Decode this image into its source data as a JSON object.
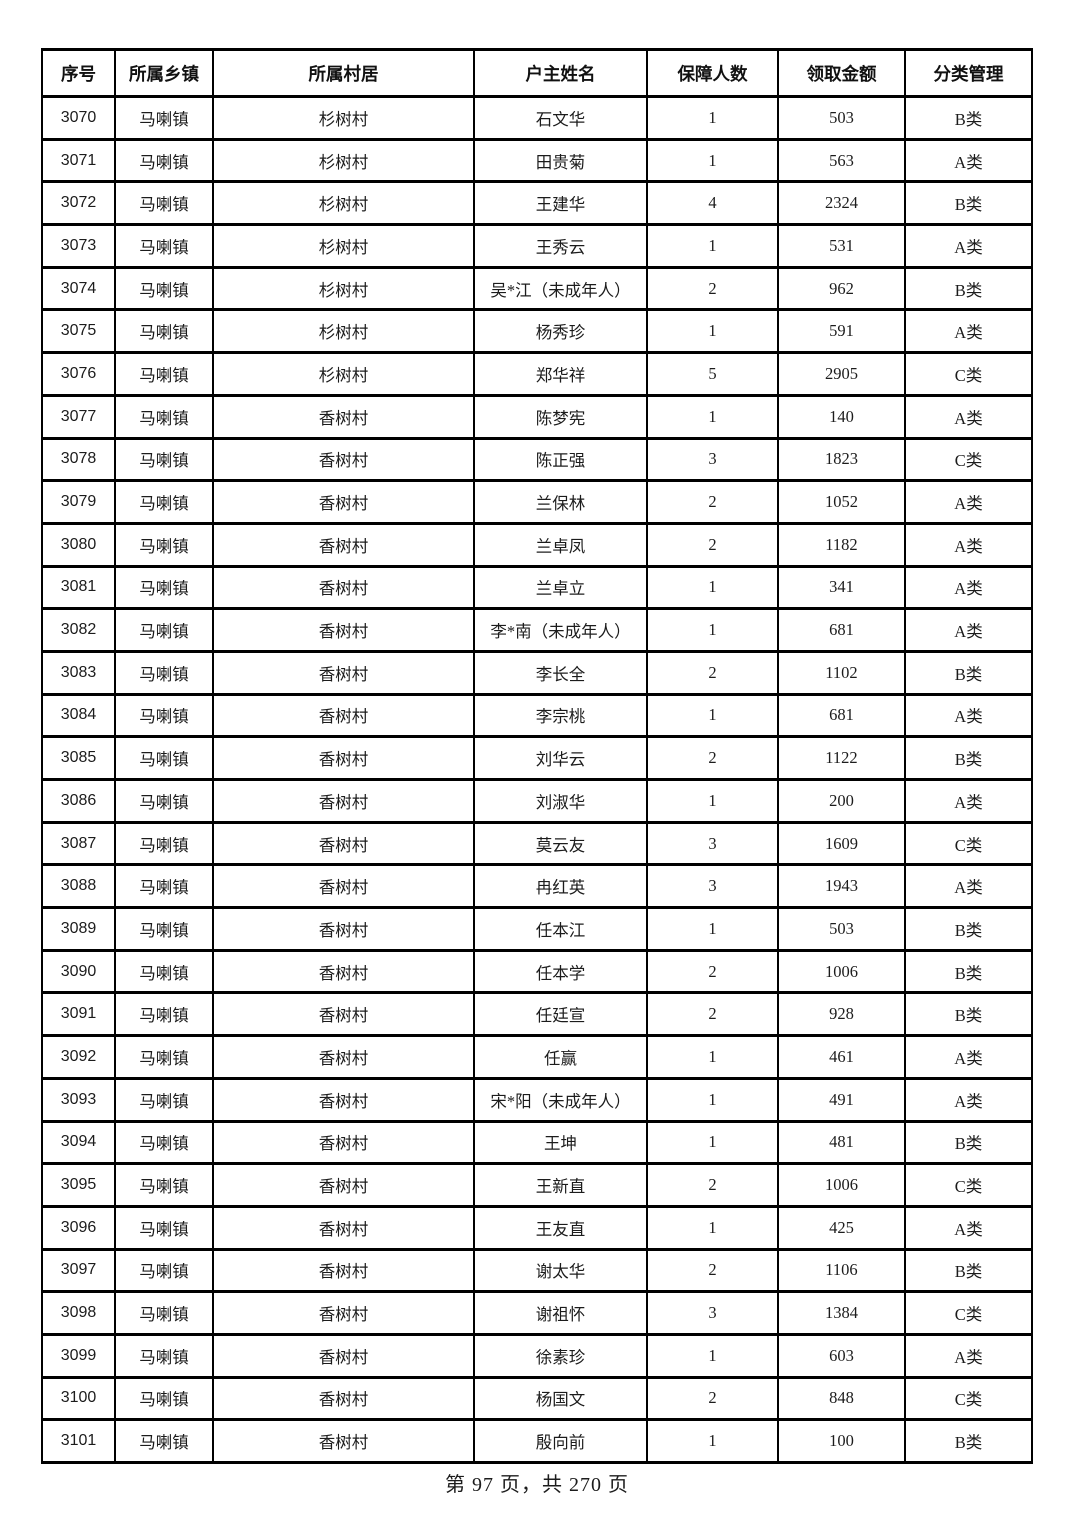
{
  "table": {
    "columns": [
      "序号",
      "所属乡镇",
      "所属村居",
      "户主姓名",
      "保障人数",
      "领取金额",
      "分类管理"
    ],
    "rows": [
      [
        "3070",
        "马喇镇",
        "杉树村",
        "石文华",
        "1",
        "503",
        "B类"
      ],
      [
        "3071",
        "马喇镇",
        "杉树村",
        "田贵菊",
        "1",
        "563",
        "A类"
      ],
      [
        "3072",
        "马喇镇",
        "杉树村",
        "王建华",
        "4",
        "2324",
        "B类"
      ],
      [
        "3073",
        "马喇镇",
        "杉树村",
        "王秀云",
        "1",
        "531",
        "A类"
      ],
      [
        "3074",
        "马喇镇",
        "杉树村",
        "吴*江（未成年人）",
        "2",
        "962",
        "B类"
      ],
      [
        "3075",
        "马喇镇",
        "杉树村",
        "杨秀珍",
        "1",
        "591",
        "A类"
      ],
      [
        "3076",
        "马喇镇",
        "杉树村",
        "郑华祥",
        "5",
        "2905",
        "C类"
      ],
      [
        "3077",
        "马喇镇",
        "香树村",
        "陈梦宪",
        "1",
        "140",
        "A类"
      ],
      [
        "3078",
        "马喇镇",
        "香树村",
        "陈正强",
        "3",
        "1823",
        "C类"
      ],
      [
        "3079",
        "马喇镇",
        "香树村",
        "兰保林",
        "2",
        "1052",
        "A类"
      ],
      [
        "3080",
        "马喇镇",
        "香树村",
        "兰卓凤",
        "2",
        "1182",
        "A类"
      ],
      [
        "3081",
        "马喇镇",
        "香树村",
        "兰卓立",
        "1",
        "341",
        "A类"
      ],
      [
        "3082",
        "马喇镇",
        "香树村",
        "李*南（未成年人）",
        "1",
        "681",
        "A类"
      ],
      [
        "3083",
        "马喇镇",
        "香树村",
        "李长全",
        "2",
        "1102",
        "B类"
      ],
      [
        "3084",
        "马喇镇",
        "香树村",
        "李宗桃",
        "1",
        "681",
        "A类"
      ],
      [
        "3085",
        "马喇镇",
        "香树村",
        "刘华云",
        "2",
        "1122",
        "B类"
      ],
      [
        "3086",
        "马喇镇",
        "香树村",
        "刘淑华",
        "1",
        "200",
        "A类"
      ],
      [
        "3087",
        "马喇镇",
        "香树村",
        "莫云友",
        "3",
        "1609",
        "C类"
      ],
      [
        "3088",
        "马喇镇",
        "香树村",
        "冉红英",
        "3",
        "1943",
        "A类"
      ],
      [
        "3089",
        "马喇镇",
        "香树村",
        "任本江",
        "1",
        "503",
        "B类"
      ],
      [
        "3090",
        "马喇镇",
        "香树村",
        "任本学",
        "2",
        "1006",
        "B类"
      ],
      [
        "3091",
        "马喇镇",
        "香树村",
        "任廷宣",
        "2",
        "928",
        "B类"
      ],
      [
        "3092",
        "马喇镇",
        "香树村",
        "任赢",
        "1",
        "461",
        "A类"
      ],
      [
        "3093",
        "马喇镇",
        "香树村",
        "宋*阳（未成年人）",
        "1",
        "491",
        "A类"
      ],
      [
        "3094",
        "马喇镇",
        "香树村",
        "王坤",
        "1",
        "481",
        "B类"
      ],
      [
        "3095",
        "马喇镇",
        "香树村",
        "王新直",
        "2",
        "1006",
        "C类"
      ],
      [
        "3096",
        "马喇镇",
        "香树村",
        "王友直",
        "1",
        "425",
        "A类"
      ],
      [
        "3097",
        "马喇镇",
        "香树村",
        "谢太华",
        "2",
        "1106",
        "B类"
      ],
      [
        "3098",
        "马喇镇",
        "香树村",
        "谢祖怀",
        "3",
        "1384",
        "C类"
      ],
      [
        "3099",
        "马喇镇",
        "香树村",
        "徐素珍",
        "1",
        "603",
        "A类"
      ],
      [
        "3100",
        "马喇镇",
        "香树村",
        "杨国文",
        "2",
        "848",
        "C类"
      ],
      [
        "3101",
        "马喇镇",
        "香树村",
        "殷向前",
        "1",
        "100",
        "B类"
      ]
    ]
  },
  "footer": {
    "text": "第 97 页，共 270 页"
  }
}
